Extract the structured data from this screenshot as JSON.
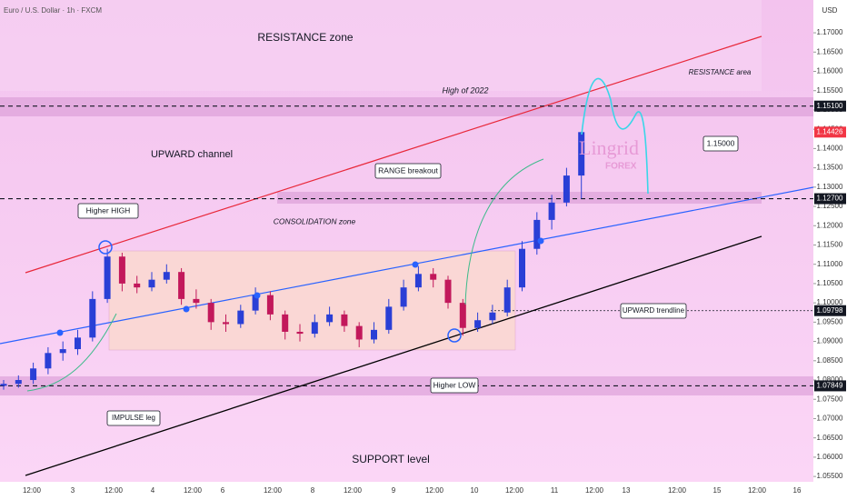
{
  "chart_data": {
    "type": "candlestick",
    "title": "Euro / U.S. Dollar · 1h · FXCM",
    "currency": "USD",
    "up_color": "#2a3fd6",
    "down_color": "#c2185b",
    "open": [
      1.0785,
      1.079,
      1.08,
      1.083,
      1.087,
      1.088,
      1.091,
      1.101,
      1.112,
      1.105,
      1.104,
      1.106,
      1.108,
      1.101,
      1.1,
      1.095,
      1.0945,
      1.098,
      1.102,
      1.097,
      1.0925,
      1.092,
      1.095,
      1.097,
      1.094,
      1.0905,
      1.093,
      1.099,
      1.104,
      1.1075,
      1.106,
      1.1,
      1.0935,
      1.0955,
      1.0975,
      1.104,
      1.114,
      1.1215,
      1.126,
      1.133
    ],
    "high": [
      1.08,
      1.0812,
      1.0845,
      1.0885,
      1.09,
      1.093,
      1.103,
      1.114,
      1.113,
      1.107,
      1.108,
      1.11,
      1.109,
      1.1035,
      1.101,
      1.097,
      1.0995,
      1.104,
      1.103,
      1.098,
      1.0945,
      1.097,
      1.099,
      1.098,
      1.095,
      1.095,
      1.101,
      1.106,
      1.1095,
      1.109,
      1.107,
      1.101,
      1.0975,
      1.0995,
      1.106,
      1.116,
      1.1235,
      1.128,
      1.135,
      1.1443
    ],
    "low": [
      1.0775,
      1.078,
      1.079,
      1.0815,
      1.085,
      1.0865,
      1.09,
      1.1,
      1.103,
      1.1025,
      1.103,
      1.105,
      1.0995,
      1.0985,
      1.093,
      1.0925,
      1.0935,
      1.097,
      1.0955,
      1.0905,
      1.09,
      1.091,
      1.094,
      1.0925,
      1.0885,
      1.0895,
      1.092,
      1.098,
      1.103,
      1.104,
      1.0985,
      1.0915,
      1.0925,
      1.0945,
      1.0965,
      1.103,
      1.1125,
      1.119,
      1.125,
      1.127
    ],
    "close": [
      1.079,
      1.08,
      1.083,
      1.087,
      1.088,
      1.091,
      1.101,
      1.112,
      1.105,
      1.104,
      1.106,
      1.108,
      1.101,
      1.1,
      1.095,
      1.0945,
      1.098,
      1.102,
      1.097,
      1.0925,
      1.092,
      1.095,
      1.097,
      1.094,
      1.0905,
      1.093,
      1.099,
      1.104,
      1.1075,
      1.106,
      1.1,
      1.0935,
      1.0955,
      1.0975,
      1.104,
      1.114,
      1.1215,
      1.126,
      1.133,
      1.14426
    ],
    "ylim": [
      1.0489,
      1.1785
    ],
    "yticks": [
      {
        "value": 1.055,
        "label": "1.05500"
      },
      {
        "value": 1.06,
        "label": "1.06000"
      },
      {
        "value": 1.065,
        "label": "1.06500"
      },
      {
        "value": 1.07,
        "label": "1.07000"
      },
      {
        "value": 1.075,
        "label": "1.07500"
      },
      {
        "value": 1.08,
        "label": "1.08000"
      },
      {
        "value": 1.085,
        "label": "1.08500"
      },
      {
        "value": 1.09,
        "label": "1.09000"
      },
      {
        "value": 1.095,
        "label": "1.09500"
      },
      {
        "value": 1.1,
        "label": "1.10000"
      },
      {
        "value": 1.105,
        "label": "1.10500"
      },
      {
        "value": 1.11,
        "label": "1.11000"
      },
      {
        "value": 1.115,
        "label": "1.11500"
      },
      {
        "value": 1.12,
        "label": "1.12000"
      },
      {
        "value": 1.125,
        "label": "1.12500"
      },
      {
        "value": 1.13,
        "label": "1.13000"
      },
      {
        "value": 1.135,
        "label": "1.13500"
      },
      {
        "value": 1.14,
        "label": "1.14000"
      },
      {
        "value": 1.145,
        "label": "1.14500"
      },
      {
        "value": 1.15,
        "label": "1.15000"
      },
      {
        "value": 1.155,
        "label": "1.15500"
      },
      {
        "value": 1.16,
        "label": "1.16000"
      },
      {
        "value": 1.165,
        "label": "1.16500"
      },
      {
        "value": 1.17,
        "label": "1.17000"
      }
    ],
    "price_levels": [
      {
        "value": 1.151,
        "label": "1.15100",
        "color": "#131722",
        "line": "dashed"
      },
      {
        "value": 1.14426,
        "label": "1.14426",
        "color": "#f23645",
        "line": "none"
      },
      {
        "value": 1.127,
        "label": "1.12700",
        "color": "#131722",
        "line": "dashed"
      },
      {
        "value": 1.09798,
        "label": "1.09798",
        "color": "#131722",
        "line": "dotted"
      },
      {
        "value": 1.07849,
        "label": "1.07849",
        "color": "#131722",
        "line": "dashed"
      }
    ],
    "x_labels": [
      "12:00",
      "3",
      "12:00",
      "4",
      "12:00",
      "6",
      "12:00",
      "8",
      "12:00",
      "9",
      "12:00",
      "10",
      "12:00",
      "11",
      "12:00",
      "13",
      "12:00",
      "15",
      "12:00",
      "16"
    ],
    "annotations": [
      "RESISTANCE zone",
      "High of 2022",
      "RESISTANCE area",
      "UPWARD channel",
      "RANGE breakout",
      "1.15000",
      "Higher HIGH",
      "CONSOLIDATION zone",
      "UPWARD trendline",
      "Higher LOW",
      "IMPULSE leg",
      "SUPPORT level"
    ],
    "watermark": [
      "Lingrid",
      "FOREX"
    ]
  }
}
